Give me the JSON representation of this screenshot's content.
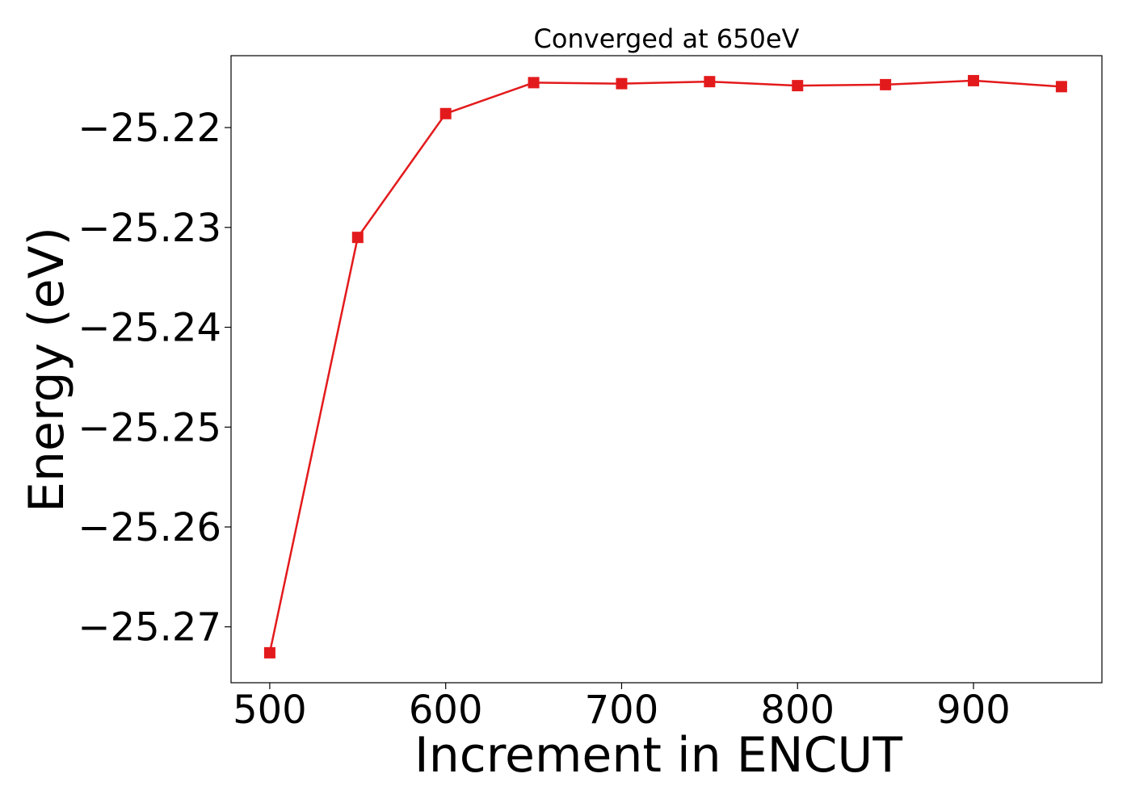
{
  "chart_data": {
    "type": "line",
    "title": "Converged at 650eV",
    "xlabel": "Increment in ENCUT",
    "ylabel": "Energy (eV)",
    "x": [
      500,
      550,
      600,
      650,
      700,
      750,
      800,
      850,
      900,
      950
    ],
    "series": [
      {
        "values": [
          -25.2726,
          -25.231,
          -25.2186,
          -25.2155,
          -25.2156,
          -25.2154,
          -25.2158,
          -25.2157,
          -25.2153,
          -25.2159
        ],
        "color": "#e31a1c",
        "marker": "square"
      }
    ],
    "xlim": [
      478,
      973
    ],
    "ylim": [
      -25.2756,
      -25.2128
    ],
    "xticks": [
      500,
      600,
      700,
      800,
      900
    ],
    "xtick_labels": [
      "500",
      "600",
      "700",
      "800",
      "900"
    ],
    "yticks": [
      -25.27,
      -25.26,
      -25.25,
      -25.24,
      -25.23,
      -25.22
    ],
    "ytick_labels": [
      "−25.27",
      "−25.26",
      "−25.25",
      "−25.24",
      "−25.23",
      "−25.22"
    ],
    "grid": false,
    "legend": "none"
  }
}
